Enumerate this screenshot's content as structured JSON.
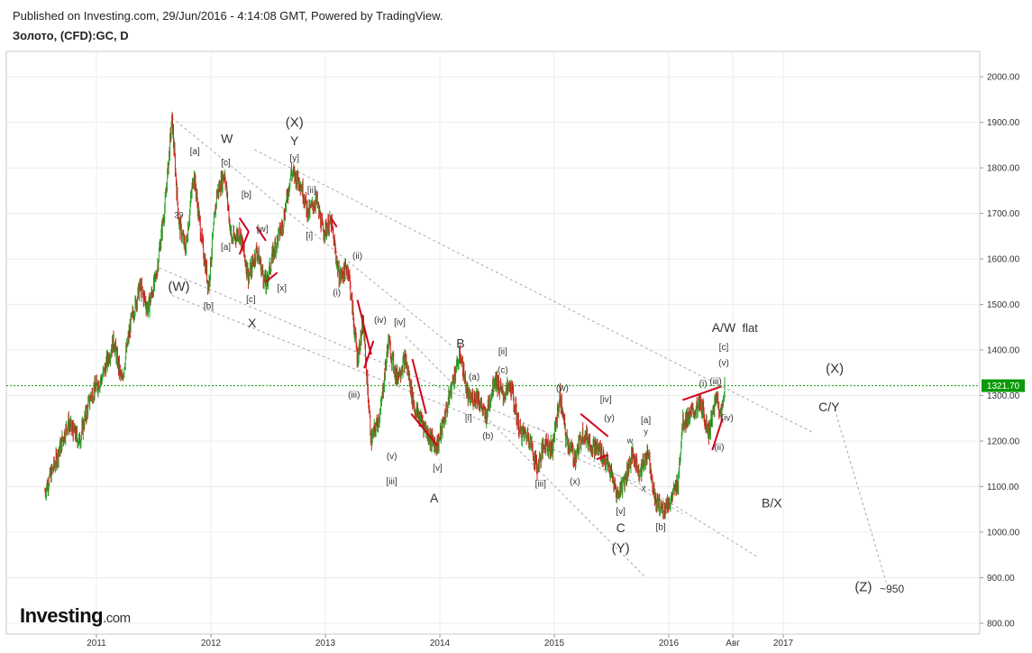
{
  "header": {
    "published": "Published on Investing.com, 29/Jun/2016 - 4:14:08 GMT, Powered by TradingView.",
    "symbol": "Золото, (CFD):GC, D"
  },
  "logo": {
    "brand": "Investing",
    "suffix": ".com"
  },
  "chart_data": {
    "type": "line",
    "price_label": "1321.70",
    "price_level": 1321.7,
    "ylim": [
      790,
      2060
    ],
    "y_ticks": [
      "800.00",
      "900.00",
      "1000.00",
      "1100.00",
      "1200.00",
      "1300.00",
      "1400.00",
      "1500.00",
      "1600.00",
      "1700.00",
      "1800.00",
      "1900.00",
      "2000.00"
    ],
    "x_ticks": [
      "2011",
      "2012",
      "2013",
      "2014",
      "2015",
      "2016",
      "Авг",
      "2017"
    ],
    "colors": {
      "up": "#27a327",
      "down": "#d21f1f",
      "line": "#d0021b",
      "price": "#0a9a0a",
      "trend": "#aaaaaa"
    },
    "price_path": [
      [
        "2010.55",
        1090
      ],
      [
        "2010.65",
        1160
      ],
      [
        "2010.75",
        1240
      ],
      [
        "2010.85",
        1200
      ],
      [
        "2010.95",
        1300
      ],
      [
        "2011.05",
        1340
      ],
      [
        "2011.15",
        1420
      ],
      [
        "2011.22",
        1330
      ],
      [
        "2011.30",
        1460
      ],
      [
        "2011.38",
        1540
      ],
      [
        "2011.45",
        1490
      ],
      [
        "2011.52",
        1560
      ],
      [
        "2011.60",
        1720
      ],
      [
        "2011.66",
        1910
      ],
      [
        "2011.72",
        1680
      ],
      [
        "2011.78",
        1620
      ],
      [
        "2011.85",
        1790
      ],
      [
        "2011.92",
        1640
      ],
      [
        "2011.98",
        1540
      ],
      [
        "2012.05",
        1740
      ],
      [
        "2012.12",
        1790
      ],
      [
        "2012.18",
        1640
      ],
      [
        "2012.25",
        1660
      ],
      [
        "2012.33",
        1560
      ],
      [
        "2012.40",
        1620
      ],
      [
        "2012.48",
        1540
      ],
      [
        "2012.55",
        1620
      ],
      [
        "2012.63",
        1680
      ],
      [
        "2012.70",
        1790
      ],
      [
        "2012.78",
        1770
      ],
      [
        "2012.85",
        1700
      ],
      [
        "2012.92",
        1730
      ],
      [
        "2012.98",
        1660
      ],
      [
        "2013.05",
        1680
      ],
      [
        "2013.12",
        1560
      ],
      [
        "2013.20",
        1580
      ],
      [
        "2013.28",
        1380
      ],
      [
        "2013.33",
        1460
      ],
      [
        "2013.40",
        1200
      ],
      [
        "2013.48",
        1260
      ],
      [
        "2013.55",
        1420
      ],
      [
        "2013.62",
        1340
      ],
      [
        "2013.70",
        1380
      ],
      [
        "2013.78",
        1270
      ],
      [
        "2013.85",
        1240
      ],
      [
        "2013.93",
        1200
      ],
      [
        "2013.98",
        1190
      ],
      [
        "2014.05",
        1260
      ],
      [
        "2014.12",
        1340
      ],
      [
        "2014.18",
        1390
      ],
      [
        "2014.25",
        1290
      ],
      [
        "2014.33",
        1300
      ],
      [
        "2014.40",
        1250
      ],
      [
        "2014.48",
        1340
      ],
      [
        "2014.55",
        1300
      ],
      [
        "2014.62",
        1320
      ],
      [
        "2014.70",
        1220
      ],
      [
        "2014.78",
        1210
      ],
      [
        "2014.85",
        1140
      ],
      [
        "2014.92",
        1200
      ],
      [
        "2014.98",
        1180
      ],
      [
        "2015.05",
        1300
      ],
      [
        "2015.10",
        1210
      ],
      [
        "2015.18",
        1160
      ],
      [
        "2015.25",
        1220
      ],
      [
        "2015.33",
        1190
      ],
      [
        "2015.40",
        1180
      ],
      [
        "2015.48",
        1140
      ],
      [
        "2015.55",
        1080
      ],
      [
        "2015.62",
        1120
      ],
      [
        "2015.68",
        1170
      ],
      [
        "2015.75",
        1130
      ],
      [
        "2015.82",
        1180
      ],
      [
        "2015.88",
        1070
      ],
      [
        "2015.95",
        1050
      ],
      [
        "2016.02",
        1070
      ],
      [
        "2016.08",
        1110
      ],
      [
        "2016.12",
        1240
      ],
      [
        "2016.20",
        1260
      ],
      [
        "2016.28",
        1280
      ],
      [
        "2016.35",
        1220
      ],
      [
        "2016.42",
        1300
      ],
      [
        "2016.46",
        1250
      ],
      [
        "2016.49",
        1330
      ]
    ],
    "red_lines": [
      [
        [
          "2012.25",
          1690
        ],
        [
          "2012.33",
          1660
        ]
      ],
      [
        [
          "2012.25",
          1610
        ],
        [
          "2012.33",
          1660
        ]
      ],
      [
        [
          "2012.40",
          1670
        ],
        [
          "2012.48",
          1640
        ]
      ],
      [
        [
          "2012.48",
          1550
        ],
        [
          "2012.58",
          1570
        ]
      ],
      [
        [
          "2013.05",
          1690
        ],
        [
          "2013.10",
          1670
        ]
      ],
      [
        [
          "2013.28",
          1510
        ],
        [
          "2013.40",
          1390
        ]
      ],
      [
        [
          "2013.34",
          1360
        ],
        [
          "2013.42",
          1420
        ]
      ],
      [
        [
          "2013.76",
          1380
        ],
        [
          "2013.88",
          1260
        ]
      ],
      [
        [
          "2013.75",
          1260
        ],
        [
          "2013.98",
          1190
        ]
      ],
      [
        [
          "2015.23",
          1260
        ],
        [
          "2015.47",
          1210
        ]
      ],
      [
        [
          "2015.37",
          1160
        ],
        [
          "2015.47",
          1170
        ]
      ],
      [
        [
          "2016.12",
          1290
        ],
        [
          "2016.46",
          1320
        ]
      ],
      [
        [
          "2016.38",
          1180
        ],
        [
          "2016.47",
          1250
        ]
      ]
    ],
    "trend_lines": [
      [
        [
          "2011.66",
          1910
        ],
        [
          "2014.10",
          1410
        ]
      ],
      [
        [
          "2012.38",
          1840
        ],
        [
          "2017.25",
          1220
        ]
      ],
      [
        [
          "2011.55",
          1580
        ],
        [
          "2014.92",
          1220
        ]
      ],
      [
        [
          "2011.66",
          1520
        ],
        [
          "2015.80",
          1100
        ]
      ],
      [
        [
          "2015.78",
          1100
        ],
        [
          "2016.78",
          945
        ]
      ],
      [
        [
          "2013.70",
          1430
        ],
        [
          "2015.80",
          900
        ]
      ],
      [
        [
          "2014.85",
          1230
        ],
        [
          "2016.12",
          1040
        ]
      ],
      [
        [
          "2017.45",
          1270
        ],
        [
          "2017.90",
          890
        ]
      ]
    ],
    "annotations": [
      {
        "text": "(X)",
        "x": "2012.73",
        "y": 1890,
        "size": 15
      },
      {
        "text": "Y",
        "x": "2012.73",
        "y": 1850,
        "size": 14
      },
      {
        "text": "W",
        "x": "2012.14",
        "y": 1855,
        "size": 14
      },
      {
        "text": "[y]",
        "x": "2012.73",
        "y": 1815,
        "size": 10
      },
      {
        "text": "[c]",
        "x": "2012.13",
        "y": 1805,
        "size": 10
      },
      {
        "text": "[a]",
        "x": "2011.86",
        "y": 1830,
        "size": 10
      },
      {
        "text": "[ii]",
        "x": "2012.88",
        "y": 1745,
        "size": 10
      },
      {
        "text": "[b]",
        "x": "2012.31",
        "y": 1735,
        "size": 10
      },
      {
        "text": "39",
        "x": "2011.72",
        "y": 1690,
        "size": 9
      },
      {
        "text": "[w]",
        "x": "2012.45",
        "y": 1660,
        "size": 10
      },
      {
        "text": "[i]",
        "x": "2012.86",
        "y": 1645,
        "size": 10
      },
      {
        "text": "[a]",
        "x": "2012.13",
        "y": 1620,
        "size": 10
      },
      {
        "text": "(ii)",
        "x": "2013.28",
        "y": 1600,
        "size": 10
      },
      {
        "text": "(W)",
        "x": "2011.72",
        "y": 1530,
        "size": 15
      },
      {
        "text": "[x]",
        "x": "2012.62",
        "y": 1530,
        "size": 10
      },
      {
        "text": "(i)",
        "x": "2013.10",
        "y": 1520,
        "size": 10
      },
      {
        "text": "[c]",
        "x": "2012.35",
        "y": 1505,
        "size": 10
      },
      {
        "text": "[b]",
        "x": "2011.98",
        "y": 1490,
        "size": 10
      },
      {
        "text": "X",
        "x": "2012.36",
        "y": 1450,
        "size": 14
      },
      {
        "text": "(iv)",
        "x": "2013.48",
        "y": 1460,
        "size": 10
      },
      {
        "text": "[iv]",
        "x": "2013.65",
        "y": 1455,
        "size": 10
      },
      {
        "text": "B",
        "x": "2014.18",
        "y": 1405,
        "size": 14
      },
      {
        "text": "[ii]",
        "x": "2014.55",
        "y": 1390,
        "size": 10
      },
      {
        "text": "(c)",
        "x": "2014.55",
        "y": 1350,
        "size": 10
      },
      {
        "text": "(a)",
        "x": "2014.30",
        "y": 1335,
        "size": 10
      },
      {
        "text": "(iii)",
        "x": "2013.25",
        "y": 1295,
        "size": 10
      },
      {
        "text": "(w)",
        "x": "2015.07",
        "y": 1310,
        "size": 10
      },
      {
        "text": "[iv]",
        "x": "2015.45",
        "y": 1285,
        "size": 10
      },
      {
        "text": "[i]",
        "x": "2014.25",
        "y": 1245,
        "size": 10
      },
      {
        "text": "(y)",
        "x": "2015.48",
        "y": 1245,
        "size": 10
      },
      {
        "text": "[a]",
        "x": "2015.80",
        "y": 1240,
        "size": 10
      },
      {
        "text": "y",
        "x": "2015.80",
        "y": 1215,
        "size": 9
      },
      {
        "text": "(b)",
        "x": "2014.42",
        "y": 1205,
        "size": 10
      },
      {
        "text": "w",
        "x": "2015.66",
        "y": 1195,
        "size": 9
      },
      {
        "text": "(v)",
        "x": "2013.58",
        "y": 1160,
        "size": 10
      },
      {
        "text": "[v]",
        "x": "2013.98",
        "y": 1135,
        "size": 10
      },
      {
        "text": "[iii]",
        "x": "2013.58",
        "y": 1105,
        "size": 10
      },
      {
        "text": "(x)",
        "x": "2015.18",
        "y": 1105,
        "size": 10
      },
      {
        "text": "[iii]",
        "x": "2014.88",
        "y": 1100,
        "size": 10
      },
      {
        "text": "x",
        "x": "2015.78",
        "y": 1090,
        "size": 9
      },
      {
        "text": "A",
        "x": "2013.95",
        "y": 1065,
        "size": 14
      },
      {
        "text": "[v]",
        "x": "2015.58",
        "y": 1040,
        "size": 10
      },
      {
        "text": "C",
        "x": "2015.58",
        "y": 1000,
        "size": 14
      },
      {
        "text": "[b]",
        "x": "2015.93",
        "y": 1005,
        "size": 10
      },
      {
        "text": "(Y)",
        "x": "2015.58",
        "y": 955,
        "size": 15
      },
      {
        "text": "A/W",
        "x": "2016.48",
        "y": 1440,
        "size": 14
      },
      {
        "text": "flat",
        "x": "2016.71",
        "y": 1440,
        "size": 13
      },
      {
        "text": "[c]",
        "x": "2016.48",
        "y": 1400,
        "size": 10
      },
      {
        "text": "(v)",
        "x": "2016.48",
        "y": 1365,
        "size": 10
      },
      {
        "text": "(iii)",
        "x": "2016.41",
        "y": 1325,
        "size": 10
      },
      {
        "text": "(i)",
        "x": "2016.30",
        "y": 1320,
        "size": 10
      },
      {
        "text": "(iv)",
        "x": "2016.51",
        "y": 1245,
        "size": 10
      },
      {
        "text": "(ii)",
        "x": "2016.44",
        "y": 1180,
        "size": 10
      },
      {
        "text": "(X)",
        "x": "2017.45",
        "y": 1350,
        "size": 15
      },
      {
        "text": "C/Y",
        "x": "2017.40",
        "y": 1265,
        "size": 14
      },
      {
        "text": "B/X",
        "x": "2016.90",
        "y": 1055,
        "size": 14
      },
      {
        "text": "(Z)",
        "x": "2017.70",
        "y": 870,
        "size": 15
      },
      {
        "text": "~950",
        "x": "2017.95",
        "y": 867,
        "size": 12
      }
    ]
  }
}
